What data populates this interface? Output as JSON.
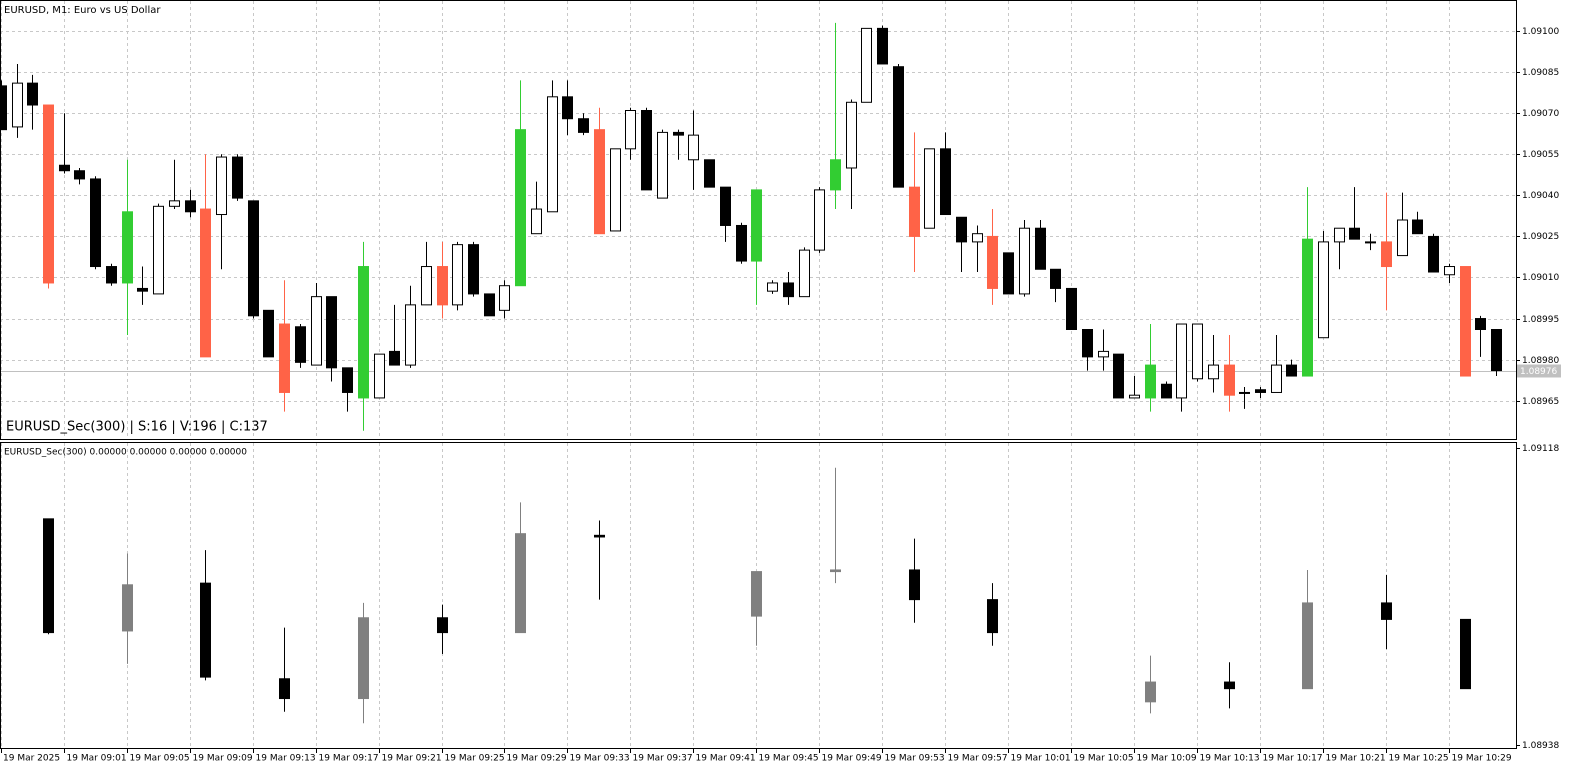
{
  "chart_data": [
    {
      "type": "candlestick",
      "title": "EURUSD, M1:  Euro vs US Dollar",
      "annotation": "EURUSD_Sec(300) | S:16 | V:196 | C:137",
      "categories": [
        "19 Mar 2025",
        null,
        null,
        null,
        "19 Mar 09:01",
        null,
        null,
        null,
        "19 Mar 09:05",
        null,
        null,
        null,
        "19 Mar 09:09",
        null,
        null,
        null,
        "19 Mar 09:13",
        null,
        null,
        null,
        "19 Mar 09:17",
        null,
        null,
        null,
        "19 Mar 09:21",
        null,
        null,
        null,
        "19 Mar 09:25",
        null,
        null,
        null,
        "19 Mar 09:29",
        null,
        null,
        null,
        "19 Mar 09:33",
        null,
        null,
        null,
        "19 Mar 09:37",
        null,
        null,
        null,
        "19 Mar 09:41",
        null,
        null,
        null,
        "19 Mar 09:45",
        null,
        null,
        null,
        "19 Mar 09:49",
        null,
        null,
        null,
        "19 Mar 09:53",
        null,
        null,
        null,
        "19 Mar 09:57",
        null,
        null,
        null,
        "19 Mar 10:01",
        null,
        null,
        null,
        "19 Mar 10:05",
        null,
        null,
        null,
        "19 Mar 10:09",
        null,
        null,
        null,
        "19 Mar 10:13",
        null,
        null,
        null,
        "19 Mar 10:17",
        null,
        null,
        null,
        "19 Mar 10:21",
        null,
        null,
        null,
        "19 Mar 10:25",
        null,
        null,
        null,
        "19 Mar 10:29",
        null,
        null,
        null
      ],
      "open": [
        1.0908,
        1.09065,
        1.09081,
        1.09073,
        1.09051,
        1.09049,
        1.09046,
        1.09014,
        1.09008,
        1.09006,
        1.09004,
        1.09036,
        1.09038,
        1.09035,
        1.09033,
        1.09054,
        1.09038,
        1.08998,
        1.08993,
        1.08992,
        1.08978,
        1.09003,
        1.08977,
        1.08966,
        1.08966,
        1.08983,
        1.08978,
        1.09,
        1.09014,
        1.09,
        1.09022,
        1.09004,
        1.08998,
        1.09007,
        1.09026,
        1.09034,
        1.09076,
        1.09068,
        1.09064,
        1.09027,
        1.09057,
        1.09071,
        1.09039,
        1.09063,
        1.09053,
        1.09053,
        1.09043,
        1.09029,
        1.09016,
        1.09005,
        1.09008,
        1.09003,
        1.0902,
        1.09042,
        1.0905,
        1.09074,
        1.09101,
        1.09087,
        1.09043,
        1.09028,
        1.09057,
        1.09032,
        1.09023,
        1.09025,
        1.09019,
        1.09004,
        1.09028,
        1.09013,
        1.09006,
        1.08991,
        1.08981,
        1.08982,
        1.08966,
        1.08966,
        1.08971,
        1.08966,
        1.08973,
        1.08973,
        1.08978,
        1.08968,
        1.08969,
        1.08968,
        1.08978,
        1.08974,
        1.08988,
        1.09023,
        1.09028,
        1.09023,
        1.09023,
        1.09018,
        1.09031,
        1.09025,
        1.09011,
        1.09014,
        1.08995,
        1.08991
      ],
      "high": [
        1.09082,
        1.09088,
        1.09084,
        1.09073,
        1.0907,
        1.0905,
        1.09047,
        1.09015,
        1.09053,
        1.09014,
        1.09037,
        1.09053,
        1.09042,
        1.09055,
        1.09055,
        1.09055,
        1.09038,
        1.08998,
        1.09009,
        1.08993,
        1.09008,
        1.09003,
        1.08977,
        1.09023,
        1.08982,
        1.09,
        1.09007,
        1.09023,
        1.09023,
        1.09023,
        1.09023,
        1.09004,
        1.09009,
        1.09082,
        1.09045,
        1.09082,
        1.09082,
        1.0907,
        1.09072,
        1.09057,
        1.09072,
        1.09072,
        1.09064,
        1.09064,
        1.09071,
        1.09053,
        1.09043,
        1.0903,
        1.09042,
        1.09009,
        1.09012,
        1.09021,
        1.09043,
        1.09103,
        1.09075,
        1.09101,
        1.09102,
        1.09088,
        1.09063,
        1.09057,
        1.09063,
        1.09032,
        1.09029,
        1.09035,
        1.09019,
        1.09031,
        1.09031,
        1.09013,
        1.09006,
        1.08991,
        1.08991,
        1.08982,
        1.08974,
        1.08993,
        1.08972,
        1.08993,
        1.08993,
        1.08989,
        1.08989,
        1.0897,
        1.0897,
        1.08989,
        1.0898,
        1.09043,
        1.09027,
        1.09028,
        1.09043,
        1.09026,
        1.09041,
        1.09041,
        1.09034,
        1.09026,
        1.09015,
        1.09014,
        1.08996,
        1.08991
      ],
      "low": [
        1.09064,
        1.09061,
        1.09064,
        1.09006,
        1.09048,
        1.09044,
        1.09013,
        1.09007,
        1.08989,
        1.09,
        1.09004,
        1.09035,
        1.09032,
        1.08981,
        1.09013,
        1.09038,
        1.08995,
        1.08981,
        1.08961,
        1.08977,
        1.08978,
        1.08972,
        1.08961,
        1.08954,
        1.08966,
        1.08978,
        1.08977,
        1.09,
        1.08995,
        1.08998,
        1.09003,
        1.08996,
        1.08995,
        1.09007,
        1.09026,
        1.09034,
        1.09062,
        1.09062,
        1.09026,
        1.09027,
        1.09053,
        1.09042,
        1.09039,
        1.09053,
        1.09042,
        1.09043,
        1.09023,
        1.09015,
        1.09,
        1.09004,
        1.09,
        1.09003,
        1.09019,
        1.09035,
        1.09035,
        1.09074,
        1.09088,
        1.09043,
        1.09012,
        1.09028,
        1.09033,
        1.09012,
        1.09012,
        1.09,
        1.09004,
        1.09003,
        1.09013,
        1.09001,
        1.08991,
        1.08976,
        1.08976,
        1.08966,
        1.08966,
        1.08961,
        1.08966,
        1.08961,
        1.08972,
        1.08968,
        1.08961,
        1.08962,
        1.08966,
        1.08968,
        1.08974,
        1.08974,
        1.08988,
        1.09013,
        1.09024,
        1.0902,
        1.08998,
        1.09018,
        1.09026,
        1.09012,
        1.09008,
        1.08974,
        1.08981,
        1.08974
      ],
      "close": [
        1.09064,
        1.09081,
        1.09073,
        1.09008,
        1.09049,
        1.09046,
        1.09014,
        1.09008,
        1.09034,
        1.09005,
        1.09036,
        1.09038,
        1.09034,
        1.08981,
        1.09054,
        1.09039,
        1.08996,
        1.08981,
        1.08968,
        1.08979,
        1.09003,
        1.08977,
        1.08968,
        1.09014,
        1.08982,
        1.08978,
        1.09,
        1.09014,
        1.09,
        1.09022,
        1.09004,
        1.08996,
        1.09007,
        1.09064,
        1.09035,
        1.09076,
        1.09068,
        1.09063,
        1.09026,
        1.09057,
        1.09071,
        1.09042,
        1.09063,
        1.09062,
        1.09062,
        1.09043,
        1.09029,
        1.09016,
        1.09042,
        1.09008,
        1.09003,
        1.0902,
        1.09042,
        1.09053,
        1.09074,
        1.09101,
        1.09088,
        1.09043,
        1.09025,
        1.09057,
        1.09033,
        1.09023,
        1.09026,
        1.09006,
        1.09004,
        1.09028,
        1.09013,
        1.09006,
        1.08991,
        1.08981,
        1.08983,
        1.08966,
        1.08967,
        1.08978,
        1.08966,
        1.08993,
        1.08993,
        1.08978,
        1.08967,
        1.08968,
        1.08968,
        1.08978,
        1.08974,
        1.09024,
        1.09023,
        1.09028,
        1.09024,
        1.09023,
        1.09014,
        1.09031,
        1.09026,
        1.09012,
        1.09014,
        1.08974,
        1.08991,
        1.08976
      ],
      "colors": [
        "#000000",
        "#ffffff",
        "#000000",
        "#ff6347",
        "#000000",
        "#000000",
        "#000000",
        "#000000",
        "#32cd32",
        "#000000",
        "#ffffff",
        "#ffffff",
        "#000000",
        "#ff6347",
        "#ffffff",
        "#000000",
        "#000000",
        "#000000",
        "#ff6347",
        "#000000",
        "#ffffff",
        "#000000",
        "#000000",
        "#32cd32",
        "#ffffff",
        "#000000",
        "#ffffff",
        "#ffffff",
        "#ff6347",
        "#ffffff",
        "#000000",
        "#000000",
        "#ffffff",
        "#32cd32",
        "#ffffff",
        "#ffffff",
        "#000000",
        "#000000",
        "#ff6347",
        "#ffffff",
        "#ffffff",
        "#000000",
        "#ffffff",
        "#000000",
        "#ffffff",
        "#000000",
        "#000000",
        "#000000",
        "#32cd32",
        "#ffffff",
        "#000000",
        "#ffffff",
        "#ffffff",
        "#32cd32",
        "#ffffff",
        "#ffffff",
        "#000000",
        "#000000",
        "#ff6347",
        "#ffffff",
        "#000000",
        "#000000",
        "#ffffff",
        "#ff6347",
        "#000000",
        "#ffffff",
        "#000000",
        "#000000",
        "#000000",
        "#000000",
        "#ffffff",
        "#000000",
        "#ffffff",
        "#32cd32",
        "#000000",
        "#ffffff",
        "#ffffff",
        "#ffffff",
        "#ff6347",
        "#ffffff",
        "#000000",
        "#ffffff",
        "#000000",
        "#32cd32",
        "#ffffff",
        "#ffffff",
        "#000000",
        "#ffffff",
        "#ff6347",
        "#ffffff",
        "#000000",
        "#000000",
        "#ffffff",
        "#ff6347",
        "#000000",
        "#000000"
      ],
      "ylim": [
        1.08951,
        1.09111
      ],
      "yticks": [
        {
          "value": 1.091,
          "label": "1.09100"
        },
        1.09085,
        {
          "value": 1.0907,
          "label": "1.09070"
        },
        1.09055,
        {
          "value": 1.0904,
          "label": "1.09040"
        },
        1.09025,
        {
          "value": 1.0901,
          "label": "1.09010"
        },
        1.08995,
        {
          "value": 1.0898,
          "label": "1.08980"
        },
        1.08965
      ],
      "grid": true,
      "current_price": 1.08976
    },
    {
      "type": "candlestick",
      "title": "EURUSD_Sec(300) 0.00000 0.00000 0.00000 0.00000",
      "open": [
        null,
        null,
        null,
        1.09075,
        null,
        null,
        null,
        null,
        1.09007,
        null,
        null,
        null,
        null,
        1.09036,
        null,
        null,
        null,
        null,
        1.08978,
        null,
        null,
        null,
        null,
        1.08966,
        null,
        null,
        null,
        null,
        1.09015,
        null,
        null,
        null,
        null,
        1.09006,
        null,
        null,
        null,
        null,
        1.09065,
        null,
        null,
        null,
        null,
        null,
        null,
        null,
        null,
        null,
        1.09016,
        null,
        null,
        null,
        null,
        1.09043,
        null,
        null,
        null,
        null,
        1.09044,
        null,
        null,
        null,
        null,
        1.09026,
        null,
        null,
        null,
        null,
        null,
        null,
        null,
        null,
        null,
        1.08964,
        null,
        null,
        null,
        null,
        1.08976,
        null,
        null,
        null,
        null,
        1.08972,
        null,
        null,
        null,
        null,
        1.09024,
        null,
        null,
        null,
        null,
        1.09014,
        null,
        null
      ],
      "high": [
        null,
        null,
        null,
        1.09075,
        null,
        null,
        null,
        null,
        1.09054,
        null,
        null,
        null,
        null,
        1.09056,
        null,
        null,
        null,
        null,
        1.09009,
        null,
        null,
        null,
        null,
        1.09024,
        null,
        null,
        null,
        null,
        1.09023,
        null,
        null,
        null,
        null,
        1.09085,
        null,
        null,
        null,
        null,
        1.09074,
        null,
        null,
        null,
        null,
        null,
        null,
        null,
        null,
        null,
        1.09043,
        null,
        null,
        null,
        null,
        1.09106,
        null,
        null,
        null,
        null,
        1.09063,
        null,
        null,
        null,
        null,
        1.09036,
        null,
        null,
        null,
        null,
        null,
        null,
        null,
        null,
        null,
        1.08992,
        null,
        null,
        null,
        null,
        1.08988,
        null,
        null,
        null,
        null,
        1.09044,
        null,
        null,
        null,
        null,
        1.09041,
        null,
        null,
        null,
        null,
        1.09014,
        null,
        null
      ],
      "low": [
        null,
        null,
        null,
        1.09005,
        null,
        null,
        null,
        null,
        1.08987,
        null,
        null,
        null,
        null,
        1.08977,
        null,
        null,
        null,
        null,
        1.08958,
        null,
        null,
        null,
        null,
        1.08951,
        null,
        null,
        null,
        null,
        1.08993,
        null,
        null,
        null,
        null,
        1.09006,
        null,
        null,
        null,
        null,
        1.09026,
        null,
        null,
        null,
        null,
        null,
        null,
        null,
        null,
        null,
        1.08998,
        null,
        null,
        null,
        null,
        1.09036,
        null,
        null,
        null,
        null,
        1.09012,
        null,
        null,
        null,
        null,
        1.08998,
        null,
        null,
        null,
        null,
        null,
        null,
        null,
        null,
        null,
        1.08957,
        null,
        null,
        null,
        null,
        1.0896,
        null,
        null,
        null,
        null,
        1.08972,
        null,
        null,
        null,
        null,
        1.08996,
        null,
        null,
        null,
        null,
        1.08972,
        null,
        null
      ],
      "close": [
        null,
        null,
        null,
        1.09006,
        null,
        null,
        null,
        null,
        1.09035,
        null,
        null,
        null,
        null,
        1.08979,
        null,
        null,
        null,
        null,
        1.08966,
        null,
        null,
        null,
        null,
        1.09015,
        null,
        null,
        null,
        null,
        1.09006,
        null,
        null,
        null,
        null,
        1.09066,
        null,
        null,
        null,
        null,
        1.09064,
        null,
        null,
        null,
        null,
        null,
        null,
        null,
        null,
        null,
        1.09043,
        null,
        null,
        null,
        null,
        1.09044,
        null,
        null,
        null,
        null,
        1.09026,
        null,
        null,
        null,
        null,
        1.09006,
        null,
        null,
        null,
        null,
        null,
        null,
        null,
        null,
        null,
        1.08976,
        null,
        null,
        null,
        null,
        1.08972,
        null,
        null,
        null,
        null,
        1.09024,
        null,
        null,
        null,
        null,
        1.09014,
        null,
        null,
        null,
        null,
        1.08972,
        null,
        null
      ],
      "up_color": "#808080",
      "down_color": "#000000",
      "ylim": [
        1.08936,
        1.09121
      ],
      "yticks": [
        1.09118,
        1.08938
      ],
      "grid": "x"
    }
  ]
}
